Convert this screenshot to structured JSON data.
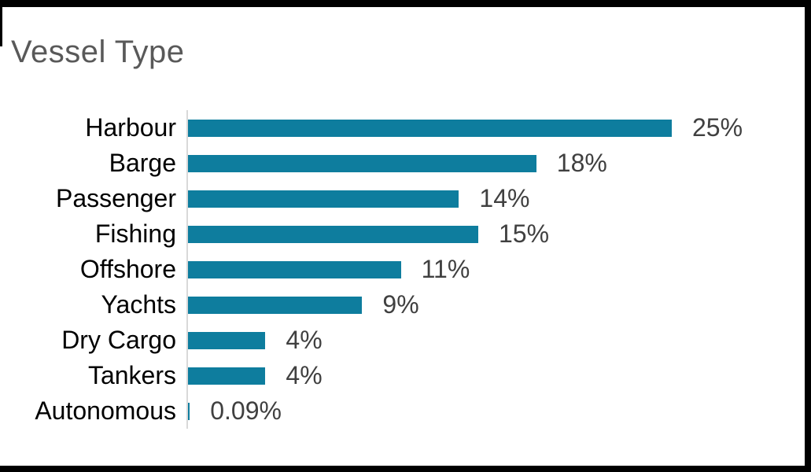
{
  "title": "Vessel Type",
  "chart_data": {
    "type": "bar",
    "orientation": "horizontal",
    "title": "Vessel Type",
    "categories": [
      "Harbour",
      "Barge",
      "Passenger",
      "Fishing",
      "Offshore",
      "Yachts",
      "Dry Cargo",
      "Tankers",
      "Autonomous"
    ],
    "values": [
      25,
      18,
      14,
      15,
      11,
      9,
      4,
      4,
      0.09
    ],
    "value_labels": [
      "25%",
      "18%",
      "14%",
      "15%",
      "11%",
      "9%",
      "4%",
      "4%",
      "0.09%"
    ],
    "unit": "percent",
    "xlim": [
      0,
      25
    ],
    "grid": false,
    "legend": false,
    "colors": {
      "bar": "#0e7d9e",
      "axis_line": "#d9d9d9",
      "category_label": "#000000",
      "value_label": "#404040",
      "title": "#595959",
      "frame_border": "#000000",
      "background": "#ffffff"
    }
  }
}
